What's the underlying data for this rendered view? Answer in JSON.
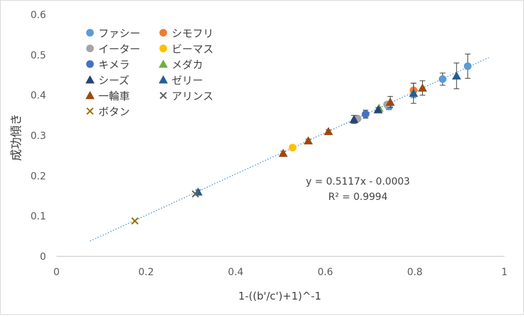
{
  "chart_data": {
    "type": "scatter",
    "title": "",
    "xlabel": "1-((b'/c')+1)^-1",
    "ylabel": "成功傾き",
    "xlim": [
      0,
      1
    ],
    "ylim": [
      0,
      0.6
    ],
    "x_ticks": [
      "0",
      "0.2",
      "0.4",
      "0.6",
      "0.8",
      "1"
    ],
    "y_ticks": [
      "0",
      "0.1",
      "0.2",
      "0.3",
      "0.4",
      "0.5",
      "0.6"
    ],
    "grid": false,
    "legend_position": "top-left",
    "trendline": {
      "slope": 0.5117,
      "intercept": -0.0003,
      "x_range": [
        0.075,
        0.965
      ],
      "equation_label": "y = 0.5117x - 0.0003",
      "r2_label": "R² = 0.9994",
      "color": "#5b9bd5"
    },
    "series": [
      {
        "name": "ファシー",
        "marker": "circle",
        "color": "#5b9bd5",
        "points": [
          {
            "x": 0.742,
            "y": 0.372,
            "err": 0.008
          },
          {
            "x": 0.862,
            "y": 0.44,
            "err": 0.015
          },
          {
            "x": 0.918,
            "y": 0.472,
            "err": 0.03
          }
        ]
      },
      {
        "name": "シモフリ",
        "marker": "circle",
        "color": "#ed7d31",
        "points": [
          {
            "x": 0.797,
            "y": 0.412,
            "err": 0.018
          }
        ]
      },
      {
        "name": "イーター",
        "marker": "circle",
        "color": "#a5a5a5",
        "points": [
          {
            "x": 0.672,
            "y": 0.342,
            "err": 0.006
          },
          {
            "x": 0.738,
            "y": 0.377,
            "err": 0.006
          }
        ]
      },
      {
        "name": "ビーマス",
        "marker": "circle",
        "color": "#ffc000",
        "points": [
          {
            "x": 0.527,
            "y": 0.27,
            "err": 0
          }
        ]
      },
      {
        "name": "キメラ",
        "marker": "circle",
        "color": "#4472c4",
        "points": [
          {
            "x": 0.69,
            "y": 0.353,
            "err": 0.01
          }
        ]
      },
      {
        "name": "メダカ",
        "marker": "triangle",
        "color": "#70ad47",
        "points": [
          {
            "x": 0.72,
            "y": 0.368,
            "err": 0
          }
        ]
      },
      {
        "name": "シーズ",
        "marker": "triangle",
        "color": "#264478",
        "points": [
          {
            "x": 0.664,
            "y": 0.34,
            "err": 0.01
          },
          {
            "x": 0.718,
            "y": 0.364,
            "err": 0.005
          }
        ]
      },
      {
        "name": "ゼリー",
        "marker": "triangle",
        "color": "#255e91",
        "points": [
          {
            "x": 0.316,
            "y": 0.16,
            "err": 0.005
          },
          {
            "x": 0.797,
            "y": 0.405,
            "err": 0.025
          },
          {
            "x": 0.893,
            "y": 0.448,
            "err": 0.032
          }
        ]
      },
      {
        "name": "一輪車",
        "marker": "triangle",
        "color": "#9e480e",
        "points": [
          {
            "x": 0.506,
            "y": 0.256,
            "err": 0.005
          },
          {
            "x": 0.562,
            "y": 0.287,
            "err": 0.004
          },
          {
            "x": 0.607,
            "y": 0.31,
            "err": 0.004
          },
          {
            "x": 0.745,
            "y": 0.383,
            "err": 0.014
          },
          {
            "x": 0.817,
            "y": 0.418,
            "err": 0.018
          }
        ]
      },
      {
        "name": "アリンス",
        "marker": "x",
        "color": "#636363",
        "points": [
          {
            "x": 0.31,
            "y": 0.155,
            "err": 0
          }
        ]
      },
      {
        "name": "ボタン",
        "marker": "x",
        "color": "#997300",
        "points": [
          {
            "x": 0.175,
            "y": 0.088,
            "err": 0
          }
        ]
      }
    ]
  }
}
